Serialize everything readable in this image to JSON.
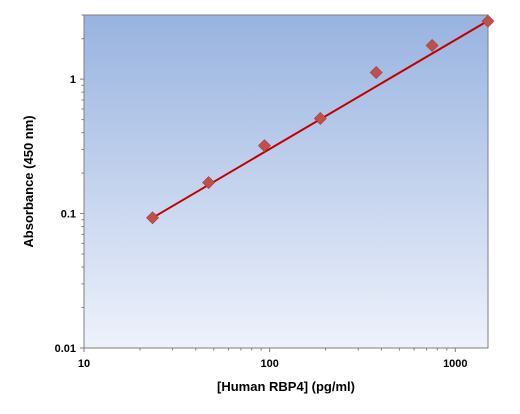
{
  "chart_data": {
    "type": "scatter",
    "title": "",
    "xlabel": "[Human RBP4] (pg/ml)",
    "ylabel": "Absorbance (450 nm)",
    "xscale": "log",
    "yscale": "log",
    "xlim": [
      10,
      1500
    ],
    "ylim": [
      0.01,
      3
    ],
    "x_ticks": [
      10,
      100,
      1000
    ],
    "x_tick_labels": [
      "10",
      "100",
      "1000"
    ],
    "y_ticks": [
      0.01,
      0.1,
      1
    ],
    "y_tick_labels": [
      "0.01",
      "0.1",
      "1"
    ],
    "grid": false,
    "legend": "none",
    "series": [
      {
        "type": "scatter",
        "marker": "diamond",
        "x": [
          23.4,
          46.9,
          93.8,
          187.5,
          375,
          750,
          1500
        ],
        "y": [
          0.093,
          0.17,
          0.32,
          0.51,
          1.12,
          1.78,
          2.7
        ]
      },
      {
        "type": "line",
        "x": [
          23.4,
          1500
        ],
        "y": [
          0.093,
          2.72
        ]
      }
    ],
    "colors": {
      "marker": "#c0504d",
      "fit_line": "#c00000",
      "plot_bg_top": "#98b3e0",
      "plot_bg_bottom": "#eef2fb"
    }
  }
}
